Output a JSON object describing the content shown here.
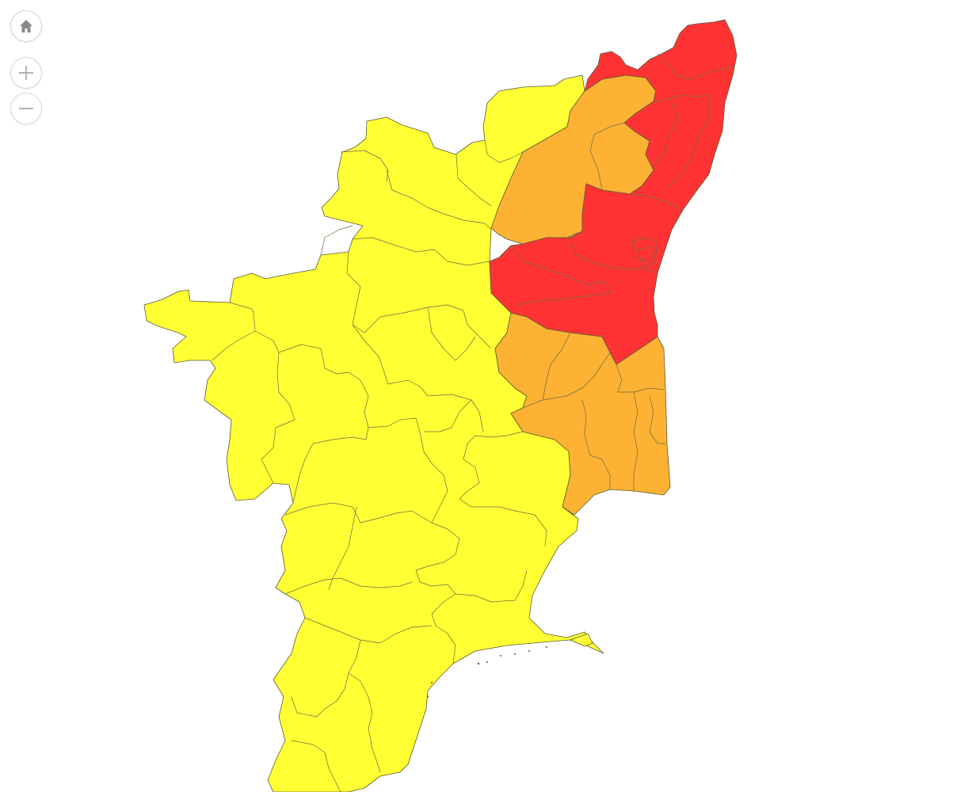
{
  "map": {
    "colors": {
      "background": "#ffffff",
      "low": "#ffff33",
      "medium": "#fdb233",
      "high": "#ff3333",
      "border": "#5a5a3a"
    },
    "legend": []
  },
  "controls": {
    "home": {
      "icon": "home-icon"
    },
    "zoom_in": {
      "icon": "plus-icon"
    },
    "zoom_out": {
      "icon": "minus-icon"
    }
  }
}
